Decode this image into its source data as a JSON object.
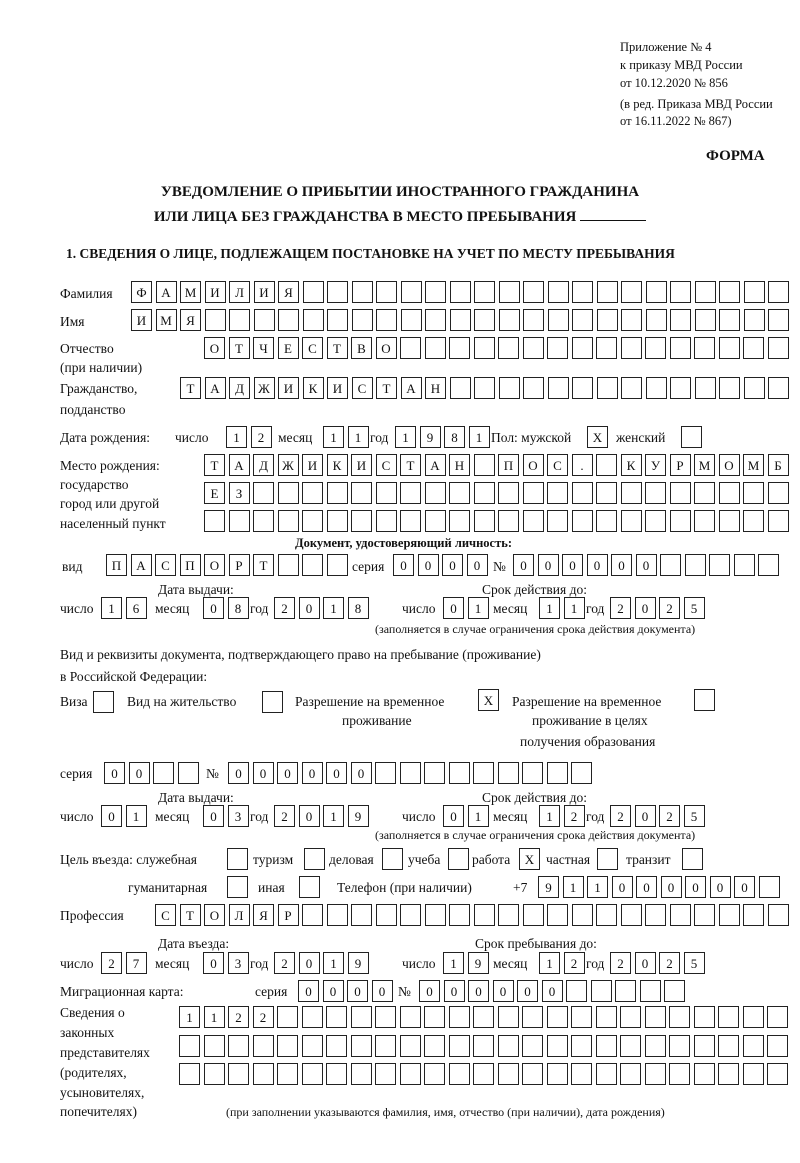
{
  "header": {
    "line1": "Приложение № 4",
    "line2": "к приказу МВД России",
    "line3": "от 10.12.2020 № 856",
    "line4": "(в ред. Приказа МВД России",
    "line5": "от 16.11.2022 № 867)",
    "form_label": "ФОРМА",
    "title1": "УВЕДОМЛЕНИЕ О ПРИБЫТИИ ИНОСТРАННОГО ГРАЖДАНИНА",
    "title2": "ИЛИ ЛИЦА БЕЗ ГРАЖДАНСТВА В МЕСТО ПРЕБЫВАНИЯ",
    "section1": "1. СВЕДЕНИЯ О ЛИЦЕ, ПОДЛЕЖАЩЕМ ПОСТАНОВКЕ НА УЧЕТ ПО МЕСТУ ПРЕБЫВАНИЯ"
  },
  "labels": {
    "surname": "Фамилия",
    "name": "Имя",
    "patronymic": "Отчество",
    "patronymic_note": "(при наличии)",
    "citizenship1": "Гражданство,",
    "citizenship2": "подданство",
    "birth_date": "Дата рождения:",
    "day": "число",
    "month": "месяц",
    "year": "год",
    "sex": "Пол: мужской",
    "female": "женский",
    "birthplace1": "Место рождения:",
    "birthplace2": "государство",
    "birthplace3": "город или другой",
    "birthplace4": "населенный пункт",
    "id_doc": "Документ, удостоверяющий личность:",
    "kind": "вид",
    "series": "серия",
    "number": "№",
    "issue_date": "Дата выдачи:",
    "valid_until": "Срок действия до:",
    "validity_note": "(заполняется в случае ограничения срока действия документа)",
    "residence_doc1": "Вид и реквизиты документа, подтверждающего право на пребывание (проживание)",
    "residence_doc2": "в Российской Федерации:",
    "visa": "Виза",
    "residence_permit": "Вид на жительство",
    "temp_permit1": "Разрешение на временное",
    "temp_permit2": "проживание",
    "temp_edu1": "Разрешение на временное",
    "temp_edu2": "проживание в целях",
    "temp_edu3": "получения образования",
    "purpose": "Цель въезда: служебная",
    "tourism": "туризм",
    "business": "деловая",
    "study": "учеба",
    "work": "работа",
    "private": "частная",
    "transit": "транзит",
    "humanitarian": "гуманитарная",
    "other": "иная",
    "phone": "Телефон (при наличии)",
    "phone_prefix": "+7",
    "profession": "Профессия",
    "entry_date": "Дата въезда:",
    "stay_until": "Срок пребывания до:",
    "migration_card": "Миграционная карта:",
    "reps1": "Сведения о",
    "reps2": "законных",
    "reps3": "представителях",
    "reps4": "(родителях,",
    "reps5": "усыновителях,",
    "reps6": "попечителях)",
    "reps_note": "(при заполнении указываются фамилия, имя, отчество (при наличии), дата рождения)"
  },
  "fields": {
    "surname": [
      "Ф",
      "А",
      "М",
      "И",
      "Л",
      "И",
      "Я",
      "",
      "",
      "",
      "",
      "",
      "",
      "",
      "",
      "",
      "",
      "",
      "",
      "",
      "",
      "",
      "",
      "",
      "",
      "",
      ""
    ],
    "name": [
      "И",
      "М",
      "Я",
      "",
      "",
      "",
      "",
      "",
      "",
      "",
      "",
      "",
      "",
      "",
      "",
      "",
      "",
      "",
      "",
      "",
      "",
      "",
      "",
      "",
      "",
      "",
      ""
    ],
    "patronymic": [
      "О",
      "Т",
      "Ч",
      "Е",
      "С",
      "Т",
      "В",
      "О",
      "",
      "",
      "",
      "",
      "",
      "",
      "",
      "",
      "",
      "",
      "",
      "",
      "",
      "",
      "",
      ""
    ],
    "citizenship": [
      "Т",
      "А",
      "Д",
      "Ж",
      "И",
      "К",
      "И",
      "С",
      "Т",
      "А",
      "Н",
      "",
      "",
      "",
      "",
      "",
      "",
      "",
      "",
      "",
      "",
      "",
      "",
      "",
      ""
    ],
    "birth_day": [
      "1",
      "2"
    ],
    "birth_month": [
      "1",
      "1"
    ],
    "birth_year": [
      "1",
      "9",
      "8",
      "1"
    ],
    "sex_male": [
      "X"
    ],
    "sex_female": [
      ""
    ],
    "birthplace_row1": [
      "Т",
      "А",
      "Д",
      "Ж",
      "И",
      "К",
      "И",
      "С",
      "Т",
      "А",
      "Н",
      "",
      "П",
      "О",
      "С",
      ".",
      "",
      "К",
      "У",
      "Р",
      "М",
      "О",
      "М",
      "Б"
    ],
    "birthplace_row2": [
      "Е",
      "З",
      "",
      "",
      "",
      "",
      "",
      "",
      "",
      "",
      "",
      "",
      "",
      "",
      "",
      "",
      "",
      "",
      "",
      "",
      "",
      "",
      "",
      ""
    ],
    "birthplace_row3": [
      "",
      "",
      "",
      "",
      "",
      "",
      "",
      "",
      "",
      "",
      "",
      "",
      "",
      "",
      "",
      "",
      "",
      "",
      "",
      "",
      "",
      "",
      "",
      ""
    ],
    "id_kind": [
      "П",
      "А",
      "С",
      "П",
      "О",
      "Р",
      "Т",
      "",
      "",
      ""
    ],
    "id_series": [
      "0",
      "0",
      "0",
      "0"
    ],
    "id_number": [
      "0",
      "0",
      "0",
      "0",
      "0",
      "0",
      "",
      "",
      "",
      "",
      ""
    ],
    "id_issue_day": [
      "1",
      "6"
    ],
    "id_issue_month": [
      "0",
      "8"
    ],
    "id_issue_year": [
      "2",
      "0",
      "1",
      "8"
    ],
    "id_valid_day": [
      "0",
      "1"
    ],
    "id_valid_month": [
      "1",
      "1"
    ],
    "id_valid_year": [
      "2",
      "0",
      "2",
      "5"
    ],
    "visa": [
      ""
    ],
    "residence_permit": [
      ""
    ],
    "temp_permit": [
      "X"
    ],
    "temp_edu": [
      ""
    ],
    "res_series": [
      "0",
      "0",
      "",
      ""
    ],
    "res_number": [
      "0",
      "0",
      "0",
      "0",
      "0",
      "0",
      "",
      "",
      "",
      "",
      "",
      "",
      "",
      "",
      ""
    ],
    "res_issue_day": [
      "0",
      "1"
    ],
    "res_issue_month": [
      "0",
      "3"
    ],
    "res_issue_year": [
      "2",
      "0",
      "1",
      "9"
    ],
    "res_valid_day": [
      "0",
      "1"
    ],
    "res_valid_month": [
      "1",
      "2"
    ],
    "res_valid_year": [
      "2",
      "0",
      "2",
      "5"
    ],
    "purpose_official": [
      ""
    ],
    "purpose_tourism": [
      ""
    ],
    "purpose_business": [
      ""
    ],
    "purpose_study": [
      ""
    ],
    "purpose_work": [
      "X"
    ],
    "purpose_private": [
      ""
    ],
    "purpose_transit": [
      ""
    ],
    "purpose_humanitarian": [
      ""
    ],
    "purpose_other": [
      ""
    ],
    "phone": [
      "9",
      "1",
      "1",
      "0",
      "0",
      "0",
      "0",
      "0",
      "0",
      ""
    ],
    "profession": [
      "С",
      "Т",
      "О",
      "Л",
      "Я",
      "Р",
      "",
      "",
      "",
      "",
      "",
      "",
      "",
      "",
      "",
      "",
      "",
      "",
      "",
      "",
      "",
      "",
      "",
      "",
      "",
      ""
    ],
    "entry_day": [
      "2",
      "7"
    ],
    "entry_month": [
      "0",
      "3"
    ],
    "entry_year": [
      "2",
      "0",
      "1",
      "9"
    ],
    "stay_day": [
      "1",
      "9"
    ],
    "stay_month": [
      "1",
      "2"
    ],
    "stay_year": [
      "2",
      "0",
      "2",
      "5"
    ],
    "mc_series": [
      "0",
      "0",
      "0",
      "0"
    ],
    "mc_number": [
      "0",
      "0",
      "0",
      "0",
      "0",
      "0",
      "",
      "",
      "",
      "",
      ""
    ],
    "reps_row1": [
      "1",
      "1",
      "2",
      "2",
      "",
      "",
      "",
      "",
      "",
      "",
      "",
      "",
      "",
      "",
      "",
      "",
      "",
      "",
      "",
      "",
      "",
      "",
      "",
      "",
      ""
    ],
    "reps_row2": [
      "",
      "",
      "",
      "",
      "",
      "",
      "",
      "",
      "",
      "",
      "",
      "",
      "",
      "",
      "",
      "",
      "",
      "",
      "",
      "",
      "",
      "",
      "",
      "",
      ""
    ],
    "reps_row3": [
      "",
      "",
      "",
      "",
      "",
      "",
      "",
      "",
      "",
      "",
      "",
      "",
      "",
      "",
      "",
      "",
      "",
      "",
      "",
      "",
      "",
      "",
      "",
      "",
      ""
    ]
  }
}
